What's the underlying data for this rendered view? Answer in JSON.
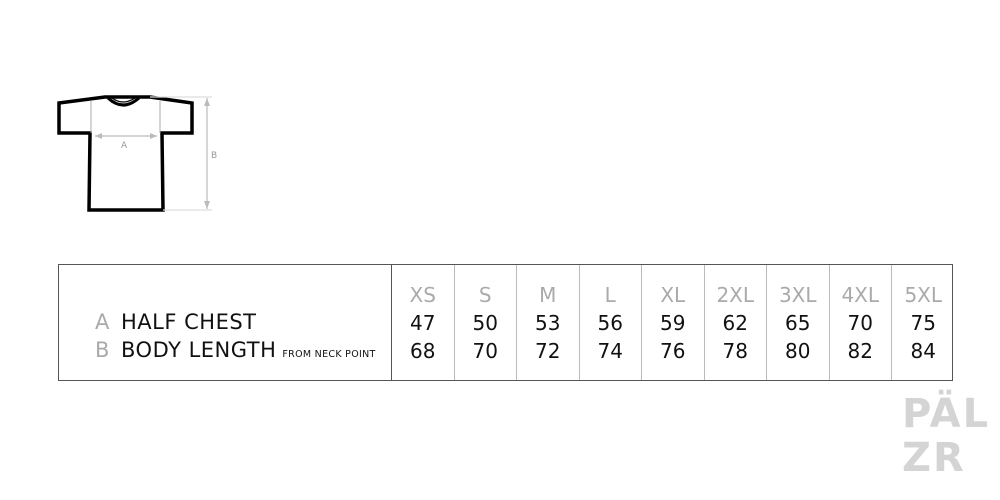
{
  "diagram": {
    "label_a": "A",
    "label_b": "B"
  },
  "table": {
    "rows": [
      {
        "letter": "A",
        "label": "HALF CHEST",
        "note": ""
      },
      {
        "letter": "B",
        "label": "BODY LENGTH",
        "note": "FROM NECK POINT"
      }
    ],
    "sizes": [
      {
        "size": "XS",
        "a": "47",
        "b": "68"
      },
      {
        "size": "S",
        "a": "50",
        "b": "70"
      },
      {
        "size": "M",
        "a": "53",
        "b": "72"
      },
      {
        "size": "L",
        "a": "56",
        "b": "74"
      },
      {
        "size": "XL",
        "a": "59",
        "b": "76"
      },
      {
        "size": "2XL",
        "a": "62",
        "b": "78"
      },
      {
        "size": "3XL",
        "a": "65",
        "b": "80"
      },
      {
        "size": "4XL",
        "a": "70",
        "b": "82"
      },
      {
        "size": "5XL",
        "a": "75",
        "b": "84"
      }
    ]
  },
  "logo": {
    "text_line1": "PÄL",
    "text_line2": "ZR"
  }
}
